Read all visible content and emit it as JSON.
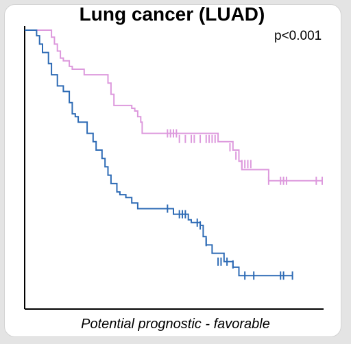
{
  "title": "Lung cancer (LUAD)",
  "pvalue_text": "p<0.001",
  "footer_text": "Potential prognostic - favorable",
  "colors": {
    "high": "#dd99dd",
    "low": "#2e6bb5",
    "axis": "#000000"
  },
  "chart_data": {
    "type": "line",
    "subtype": "kaplan-meier-step",
    "title": "Lung cancer (LUAD)",
    "annotation": "p<0.001",
    "xlabel": "",
    "ylabel": "",
    "xlim": [
      0,
      100
    ],
    "ylim": [
      0,
      1
    ],
    "grid": false,
    "series": [
      {
        "color": "#dd99dd",
        "points": [
          [
            0,
            1.0
          ],
          [
            9,
            1.0
          ],
          [
            9,
            0.975
          ],
          [
            10,
            0.975
          ],
          [
            10,
            0.95
          ],
          [
            11,
            0.95
          ],
          [
            11,
            0.925
          ],
          [
            12,
            0.925
          ],
          [
            12,
            0.9
          ],
          [
            13,
            0.9
          ],
          [
            13,
            0.89
          ],
          [
            15,
            0.89
          ],
          [
            15,
            0.87
          ],
          [
            16,
            0.87
          ],
          [
            16,
            0.86
          ],
          [
            20,
            0.86
          ],
          [
            20,
            0.84
          ],
          [
            28,
            0.84
          ],
          [
            28,
            0.81
          ],
          [
            29,
            0.81
          ],
          [
            29,
            0.77
          ],
          [
            30,
            0.77
          ],
          [
            30,
            0.73
          ],
          [
            36,
            0.73
          ],
          [
            36,
            0.72
          ],
          [
            37,
            0.72
          ],
          [
            37,
            0.71
          ],
          [
            38,
            0.71
          ],
          [
            38,
            0.69
          ],
          [
            39,
            0.69
          ],
          [
            39,
            0.67
          ],
          [
            39.5,
            0.67
          ],
          [
            39.5,
            0.63
          ],
          [
            65,
            0.63
          ],
          [
            65,
            0.6
          ],
          [
            70,
            0.6
          ],
          [
            70,
            0.57
          ],
          [
            72,
            0.57
          ],
          [
            72,
            0.53
          ],
          [
            73,
            0.53
          ],
          [
            73,
            0.5
          ],
          [
            82,
            0.5
          ],
          [
            82,
            0.46
          ],
          [
            100,
            0.46
          ]
        ],
        "censored": [
          [
            48,
            0.63
          ],
          [
            49,
            0.63
          ],
          [
            50,
            0.63
          ],
          [
            51,
            0.63
          ],
          [
            52,
            0.61
          ],
          [
            54,
            0.61
          ],
          [
            56,
            0.61
          ],
          [
            57,
            0.61
          ],
          [
            59,
            0.61
          ],
          [
            61,
            0.61
          ],
          [
            62,
            0.61
          ],
          [
            63,
            0.61
          ],
          [
            64,
            0.61
          ],
          [
            69,
            0.58
          ],
          [
            71,
            0.55
          ],
          [
            73,
            0.52
          ],
          [
            74,
            0.52
          ],
          [
            75,
            0.52
          ],
          [
            76,
            0.52
          ],
          [
            82,
            0.46
          ],
          [
            86,
            0.46
          ],
          [
            87,
            0.46
          ],
          [
            88,
            0.46
          ],
          [
            98,
            0.46
          ],
          [
            100,
            0.46
          ]
        ]
      },
      {
        "color": "#2e6bb5",
        "points": [
          [
            0,
            1.0
          ],
          [
            4,
            1.0
          ],
          [
            4,
            0.98
          ],
          [
            5,
            0.98
          ],
          [
            5,
            0.95
          ],
          [
            6,
            0.95
          ],
          [
            6,
            0.92
          ],
          [
            8,
            0.92
          ],
          [
            8,
            0.88
          ],
          [
            9,
            0.88
          ],
          [
            9,
            0.84
          ],
          [
            11,
            0.84
          ],
          [
            11,
            0.8
          ],
          [
            13,
            0.8
          ],
          [
            13,
            0.78
          ],
          [
            15,
            0.78
          ],
          [
            15,
            0.74
          ],
          [
            16,
            0.74
          ],
          [
            16,
            0.7
          ],
          [
            17,
            0.7
          ],
          [
            17,
            0.69
          ],
          [
            18,
            0.69
          ],
          [
            18,
            0.67
          ],
          [
            21,
            0.67
          ],
          [
            21,
            0.63
          ],
          [
            23,
            0.63
          ],
          [
            23,
            0.6
          ],
          [
            24,
            0.6
          ],
          [
            24,
            0.57
          ],
          [
            26,
            0.57
          ],
          [
            26,
            0.54
          ],
          [
            27,
            0.54
          ],
          [
            27,
            0.51
          ],
          [
            28,
            0.51
          ],
          [
            28,
            0.48
          ],
          [
            29,
            0.48
          ],
          [
            29,
            0.45
          ],
          [
            31,
            0.45
          ],
          [
            31,
            0.42
          ],
          [
            32,
            0.42
          ],
          [
            32,
            0.41
          ],
          [
            34,
            0.41
          ],
          [
            34,
            0.4
          ],
          [
            35,
            0.4
          ],
          [
            35,
            0.4
          ],
          [
            36,
            0.4
          ],
          [
            36,
            0.38
          ],
          [
            38,
            0.38
          ],
          [
            38,
            0.36
          ],
          [
            50,
            0.36
          ],
          [
            50,
            0.34
          ],
          [
            55,
            0.34
          ],
          [
            55,
            0.32
          ],
          [
            56,
            0.32
          ],
          [
            56,
            0.31
          ],
          [
            59,
            0.31
          ],
          [
            59,
            0.3
          ],
          [
            60,
            0.3
          ],
          [
            60,
            0.26
          ],
          [
            61,
            0.26
          ],
          [
            61,
            0.23
          ],
          [
            63,
            0.23
          ],
          [
            63,
            0.2
          ],
          [
            67,
            0.2
          ],
          [
            67,
            0.17
          ],
          [
            70,
            0.17
          ],
          [
            70,
            0.15
          ],
          [
            72,
            0.15
          ],
          [
            72,
            0.12
          ],
          [
            90,
            0.12
          ]
        ],
        "censored": [
          [
            48,
            0.36
          ],
          [
            52,
            0.34
          ],
          [
            53,
            0.34
          ],
          [
            54,
            0.34
          ],
          [
            58,
            0.31
          ],
          [
            59,
            0.3
          ],
          [
            61,
            0.24
          ],
          [
            65,
            0.17
          ],
          [
            66,
            0.17
          ],
          [
            68,
            0.17
          ],
          [
            70,
            0.16
          ],
          [
            74,
            0.12
          ],
          [
            77,
            0.12
          ],
          [
            86,
            0.12
          ],
          [
            87,
            0.12
          ],
          [
            90,
            0.12
          ]
        ]
      }
    ]
  }
}
